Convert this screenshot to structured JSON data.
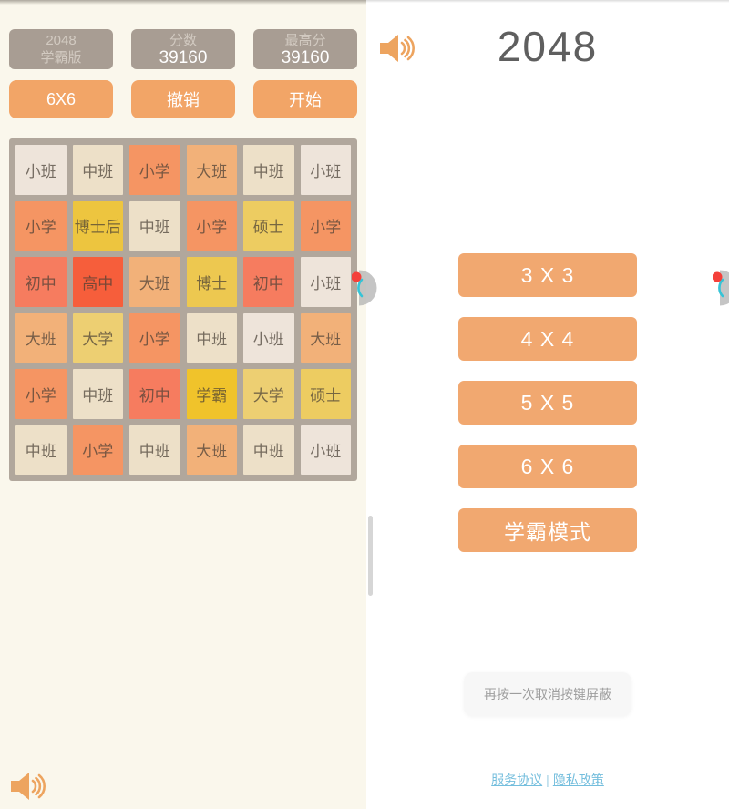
{
  "left_panel": {
    "header": {
      "title_line1": "2048",
      "title_line2": "学霸版",
      "score_label": "分数",
      "score_value": "39160",
      "best_label": "最高分",
      "best_value": "39160",
      "size_button": "6X6",
      "undo_button": "撤销",
      "start_button": "开始"
    },
    "grid_rows": [
      [
        "小班",
        "中班",
        "小学",
        "大班",
        "中班",
        "小班"
      ],
      [
        "小学",
        "博士后",
        "中班",
        "小学",
        "硕士",
        "小学"
      ],
      [
        "初中",
        "高中",
        "大班",
        "博士",
        "初中",
        "小班"
      ],
      [
        "大班",
        "大学",
        "小学",
        "中班",
        "小班",
        "大班"
      ],
      [
        "小学",
        "中班",
        "初中",
        "学霸",
        "大学",
        "硕士"
      ],
      [
        "中班",
        "小学",
        "中班",
        "大班",
        "中班",
        "小班"
      ]
    ],
    "tile_colors": {
      "小班": "#eee4da",
      "中班": "#ede0c8",
      "大班": "#f2b179",
      "小学": "#f59563",
      "初中": "#f67c5f",
      "高中": "#f65e3b",
      "大学": "#edcf72",
      "硕士": "#edcc61",
      "博士": "#edc850",
      "博士后": "#edc53f",
      "学霸": "#f0c32b"
    }
  },
  "right_panel": {
    "title": "2048",
    "menu_buttons": [
      "3 X 3",
      "4 X 4",
      "5 X 5",
      "6 X 6",
      "学霸模式"
    ],
    "toast_text": "再按一次取消按键屏蔽",
    "footer": {
      "terms_link": "服务协议",
      "separator": "|",
      "privacy_link": "隐私政策"
    }
  },
  "icons": {
    "sound": "speaker-icon",
    "assistant": "assistant-widget-icon",
    "badge": "red-dot-badge"
  },
  "colors": {
    "accent_orange": "#f2a567",
    "menu_orange": "#f1a870",
    "header_gray": "#a89d93",
    "grid_bg": "#b1a79c",
    "left_bg": "#faf7ec",
    "link_blue": "#74bedd",
    "badge_red": "#f4403a",
    "widget_cyan": "#35c4d7"
  }
}
